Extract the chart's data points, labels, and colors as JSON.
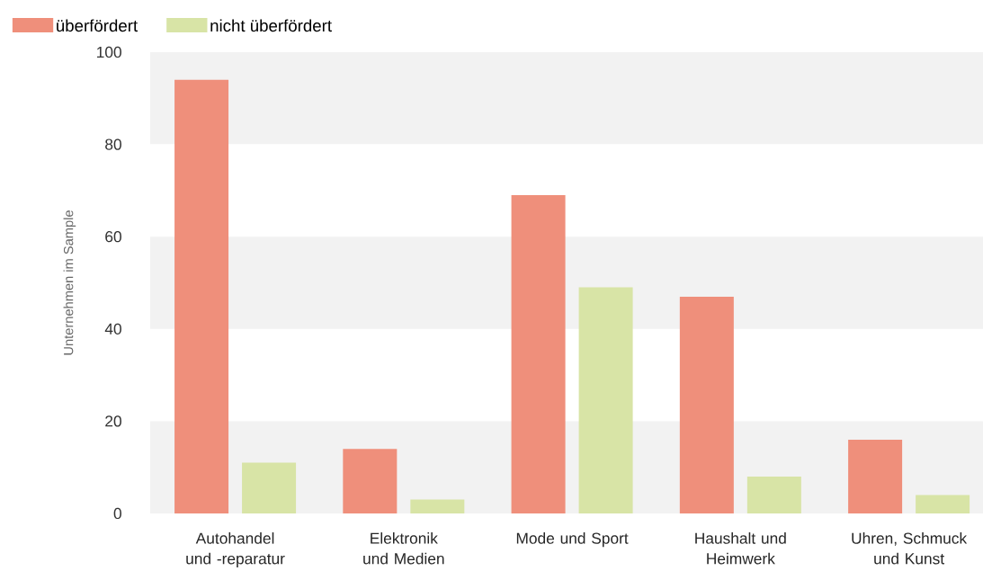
{
  "chart_data": {
    "type": "bar",
    "ylabel": "Unternehmen im Sample",
    "categories": [
      "Autohandel und -reparatur",
      "Elektronik und Medien",
      "Mode und Sport",
      "Haushalt und Heimwerk",
      "Uhren, Schmuck und Kunst"
    ],
    "series": [
      {
        "name": "überfördert",
        "color": "#ef8f7b",
        "values": [
          94,
          14,
          69,
          47,
          16
        ]
      },
      {
        "name": "nicht überfördert",
        "color": "#d8e4a6",
        "values": [
          11,
          3,
          49,
          8,
          4
        ]
      }
    ],
    "ylim": [
      0,
      100
    ],
    "yticks": [
      0,
      20,
      40,
      60,
      80,
      100
    ],
    "legend": "top left",
    "bands": [
      {
        "axis": "y",
        "from": 0,
        "to": 20,
        "color": "#f2f2f2"
      },
      {
        "axis": "y",
        "from": 40,
        "to": 60,
        "color": "#f2f2f2"
      },
      {
        "axis": "y",
        "from": 80,
        "to": 100,
        "color": "#f2f2f2"
      }
    ]
  }
}
